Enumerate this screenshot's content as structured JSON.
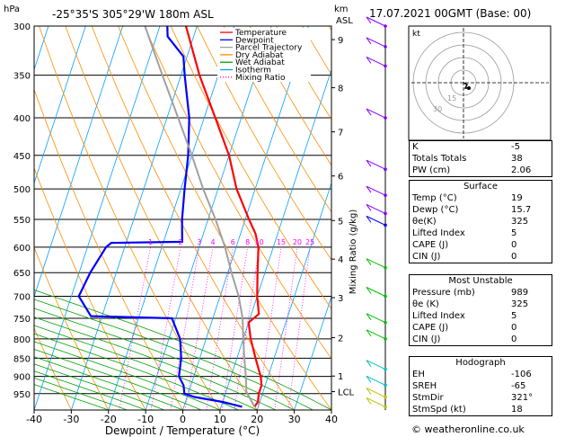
{
  "header": {
    "hpa_label": "hPa",
    "location": "-25°35'S  305°29'W  180m  ASL",
    "km_label": "km",
    "asl_label": "ASL",
    "date": "17.07.2021  00GMT  (Base: 00)"
  },
  "footer": {
    "credit": "© weatheronline.co.uk"
  },
  "chart_data": {
    "type": "line",
    "xlabel": "Dewpoint / Temperature (°C)",
    "ylabel_right": "Mixing Ratio (g/kg)",
    "xlim": [
      -40,
      40
    ],
    "x_ticks": [
      -40,
      -30,
      -20,
      -10,
      0,
      10,
      20,
      30,
      40
    ],
    "pressure_range_hpa": [
      300,
      1000
    ],
    "pressure_ticks": [
      300,
      350,
      400,
      450,
      500,
      550,
      600,
      650,
      700,
      750,
      800,
      850,
      900,
      950
    ],
    "km_ticks": [
      {
        "label": "9",
        "p": 313
      },
      {
        "label": "8",
        "p": 364
      },
      {
        "label": "7",
        "p": 418
      },
      {
        "label": "6",
        "p": 480
      },
      {
        "label": "5",
        "p": 552
      },
      {
        "label": "4",
        "p": 623
      },
      {
        "label": "3",
        "p": 703
      },
      {
        "label": "2",
        "p": 797
      },
      {
        "label": "1",
        "p": 899
      },
      {
        "label": "LCL",
        "p": 944
      }
    ],
    "mixing_ratio_labels": [
      "1",
      "2",
      "3",
      "4",
      "6",
      "8",
      "10",
      "15",
      "20",
      "25"
    ],
    "legend": {
      "placement": "top-left",
      "entries": [
        {
          "name": "Temperature",
          "color": "#ff0000"
        },
        {
          "name": "Dewpoint",
          "color": "#0000ff"
        },
        {
          "name": "Parcel Trajectory",
          "color": "#a0a0a0"
        },
        {
          "name": "Dry Adiabat",
          "color": "#ff8c00"
        },
        {
          "name": "Wet Adiabat",
          "color": "#00a000"
        },
        {
          "name": "Isotherm",
          "color": "#00a0ff"
        },
        {
          "name": "Mixing Ratio",
          "color": "#ff00ff"
        }
      ]
    },
    "series": [
      {
        "name": "Temperature",
        "color": "#ff0000",
        "points": [
          [
            300,
            -33
          ],
          [
            350,
            -25
          ],
          [
            400,
            -17
          ],
          [
            450,
            -10
          ],
          [
            500,
            -5
          ],
          [
            550,
            1
          ],
          [
            575,
            4
          ],
          [
            600,
            6
          ],
          [
            650,
            8
          ],
          [
            700,
            10
          ],
          [
            740,
            12
          ],
          [
            760,
            10
          ],
          [
            800,
            12
          ],
          [
            850,
            15
          ],
          [
            900,
            18
          ],
          [
            925,
            19
          ],
          [
            950,
            19
          ],
          [
            975,
            19.5
          ],
          [
            990,
            19
          ]
        ]
      },
      {
        "name": "Dewpoint",
        "color": "#0000ff",
        "points": [
          [
            300,
            -38
          ],
          [
            310,
            -37
          ],
          [
            330,
            -31
          ],
          [
            350,
            -29
          ],
          [
            400,
            -24
          ],
          [
            450,
            -21
          ],
          [
            500,
            -19
          ],
          [
            550,
            -17
          ],
          [
            590,
            -15
          ],
          [
            592,
            -34
          ],
          [
            600,
            -35
          ],
          [
            650,
            -37
          ],
          [
            700,
            -38
          ],
          [
            745,
            -33
          ],
          [
            750,
            -11
          ],
          [
            800,
            -7
          ],
          [
            850,
            -5
          ],
          [
            900,
            -4
          ],
          [
            925,
            -2
          ],
          [
            950,
            -1
          ],
          [
            960,
            2
          ],
          [
            975,
            10
          ],
          [
            990,
            15.7
          ]
        ]
      },
      {
        "name": "Parcel Trajectory",
        "color": "#a0a0a0",
        "points": [
          [
            300,
            -44
          ],
          [
            350,
            -35
          ],
          [
            400,
            -27
          ],
          [
            450,
            -20
          ],
          [
            500,
            -14
          ],
          [
            550,
            -8
          ],
          [
            600,
            -3
          ],
          [
            650,
            1
          ],
          [
            700,
            5
          ],
          [
            750,
            8
          ],
          [
            800,
            10
          ],
          [
            850,
            12
          ],
          [
            900,
            14
          ],
          [
            944,
            15.5
          ],
          [
            990,
            19
          ]
        ]
      }
    ],
    "wind_barb_colors": [
      "#8000ff",
      "#0000ff",
      "#00c0c0",
      "#00c000",
      "#c0c000"
    ],
    "hodograph": {
      "rings": 4,
      "labels": [
        "15",
        "30"
      ],
      "corner_label": "kt"
    }
  },
  "indices": {
    "k_label": "K",
    "k_value": "-5",
    "tt_label": "Totals Totals",
    "tt_value": "38",
    "pw_label": "PW (cm)",
    "pw_value": "2.06"
  },
  "surface": {
    "title": "Surface",
    "rows": [
      {
        "label": "Temp (°C)",
        "value": "19"
      },
      {
        "label": "Dewp (°C)",
        "value": "15.7"
      },
      {
        "label": "θe(K)",
        "value": "325"
      },
      {
        "label": "Lifted Index",
        "value": "5"
      },
      {
        "label": "CAPE (J)",
        "value": "0"
      },
      {
        "label": "CIN (J)",
        "value": "0"
      }
    ]
  },
  "most_unstable": {
    "title": "Most Unstable",
    "rows": [
      {
        "label": "Pressure (mb)",
        "value": "989"
      },
      {
        "label": "θe (K)",
        "value": "325"
      },
      {
        "label": "Lifted Index",
        "value": "5"
      },
      {
        "label": "CAPE (J)",
        "value": "0"
      },
      {
        "label": "CIN (J)",
        "value": "0"
      }
    ]
  },
  "hodograph_table": {
    "title": "Hodograph",
    "rows": [
      {
        "label": "EH",
        "value": "-106"
      },
      {
        "label": "SREH",
        "value": "-65"
      },
      {
        "label": "StmDir",
        "value": "321°"
      },
      {
        "label": "StmSpd (kt)",
        "value": "18"
      }
    ]
  }
}
